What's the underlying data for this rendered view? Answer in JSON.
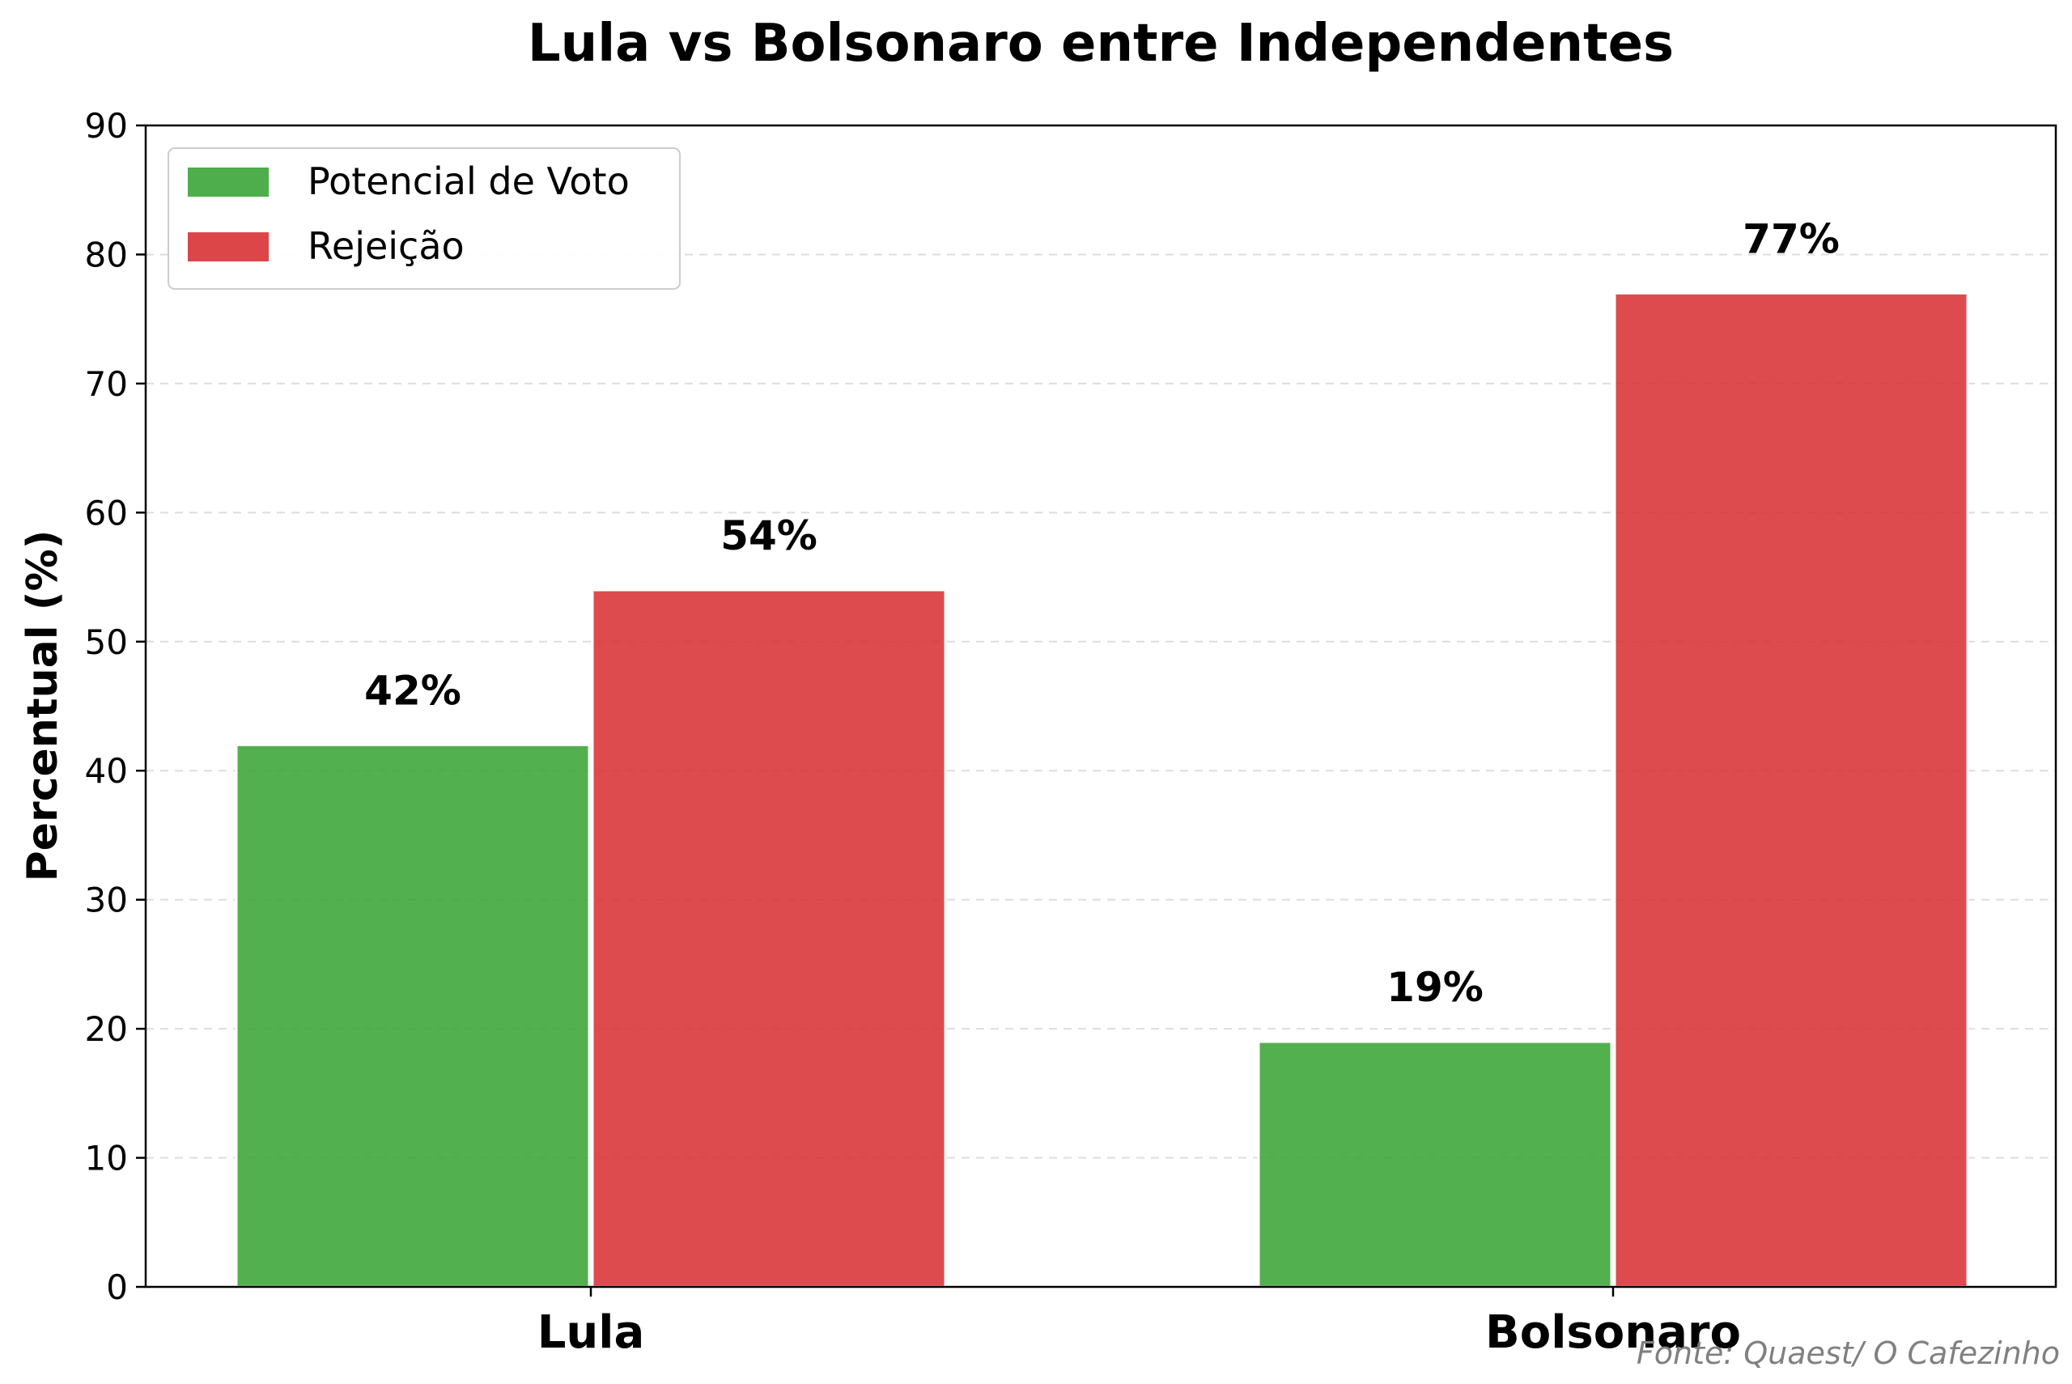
{
  "chart_data": {
    "type": "bar",
    "title": "Lula vs Bolsonaro entre Independentes",
    "xlabel": "",
    "ylabel": "Percentual (%)",
    "categories": [
      "Lula",
      "Bolsonaro"
    ],
    "series": [
      {
        "name": "Potencial de Voto",
        "values": [
          42,
          19
        ],
        "labels": [
          "42%",
          "19%"
        ],
        "color": "#3aa537"
      },
      {
        "name": "Rejeição",
        "values": [
          54,
          77
        ],
        "labels": [
          "54%",
          "77%"
        ],
        "color": "#d93235"
      }
    ],
    "ylim": [
      0,
      90
    ],
    "yticks": [
      "0",
      "10",
      "20",
      "30",
      "40",
      "50",
      "60",
      "70",
      "80",
      "90"
    ],
    "grid": "horizontal-dashed",
    "legend": "top-left"
  },
  "source": "Fonte: Quaest/ O Cafezinho"
}
